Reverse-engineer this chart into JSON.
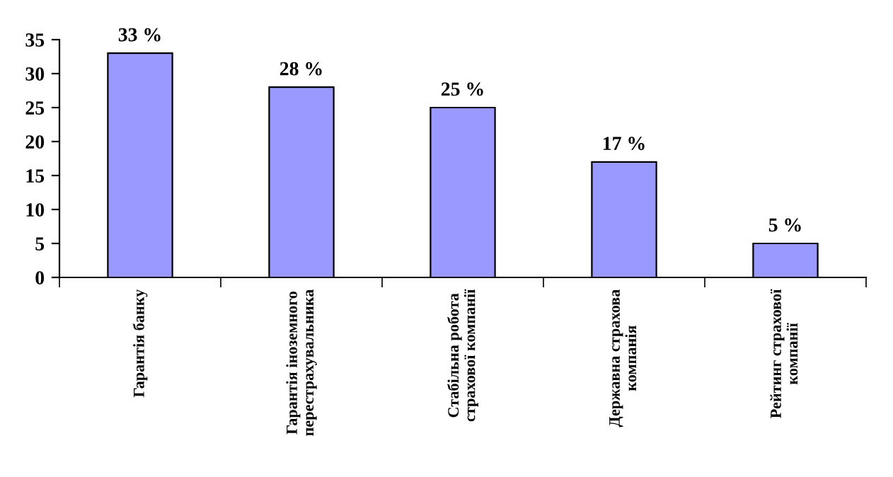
{
  "chart_data": {
    "type": "bar",
    "categories": [
      "Гарантія банку",
      "Гарантія іноземного\nперестрахувальника",
      "Стабільна робота\nстрахової компанії",
      "Державна страхова\nкомпанія",
      "Рейтинг страхової\nкомпанії"
    ],
    "values": [
      33,
      28,
      25,
      17,
      5
    ],
    "value_labels": [
      "33 %",
      "28 %",
      "25 %",
      "17 %",
      "5 %"
    ],
    "color": "#9999ff",
    "ylim": [
      0,
      35
    ],
    "yticks": [
      0,
      5,
      10,
      15,
      20,
      25,
      30,
      35
    ],
    "grid": false,
    "legend": false
  }
}
